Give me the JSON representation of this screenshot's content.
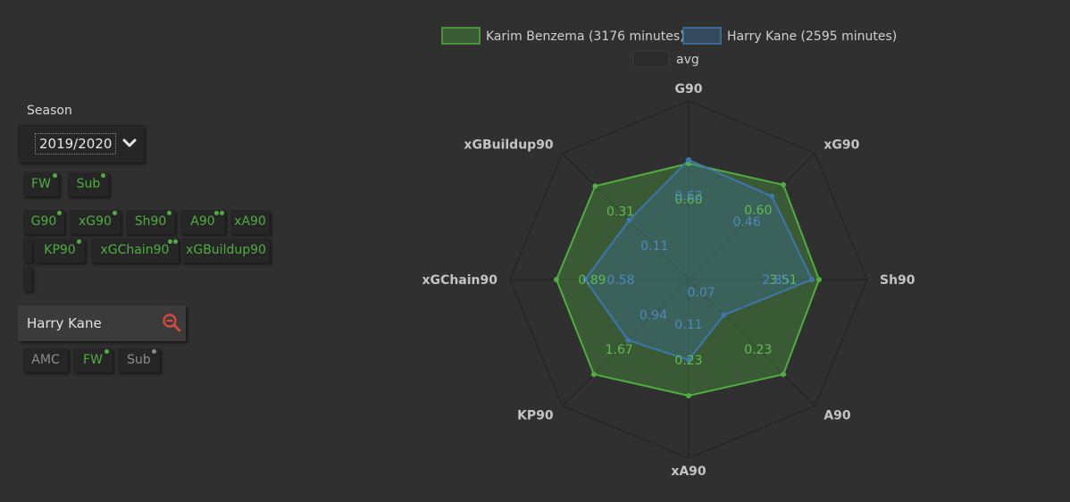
{
  "sidebar": {
    "season_label": "Season",
    "season_value": "2019/2020",
    "position_filters": [
      {
        "label": "FW",
        "active": true
      },
      {
        "label": "Sub",
        "active": true
      }
    ],
    "metric_filters": [
      {
        "label": "G90",
        "dots": 1
      },
      {
        "label": "xG90",
        "dots": 1
      },
      {
        "label": "Sh90",
        "dots": 1
      },
      {
        "label": "A90",
        "dots": 2
      },
      {
        "label": "xA90",
        "dots": 0
      },
      {
        "label": "",
        "dots": 0
      },
      {
        "label": "KP90",
        "dots": 1
      },
      {
        "label": "xGChain90",
        "dots": 2
      },
      {
        "label": "xGBuildup90",
        "dots": 0
      },
      {
        "label": "",
        "dots": 0
      }
    ],
    "player": {
      "name": "Harry Kane",
      "icon": "zoom-out-icon",
      "positions": [
        {
          "label": "AMC",
          "active": false
        },
        {
          "label": "FW",
          "active": true
        },
        {
          "label": "Sub",
          "active": false
        }
      ]
    }
  },
  "chart_data": {
    "type": "radar",
    "axes": [
      "G90",
      "xG90",
      "Sh90",
      "A90",
      "xA90",
      "KP90",
      "xGChain90",
      "xGBuildup90"
    ],
    "series": [
      {
        "name": "Karim Benzema (3176 minutes)",
        "color": "#4fae3f",
        "fraction": [
          0.65,
          0.75,
          0.73,
          0.75,
          0.65,
          0.75,
          0.74,
          0.74
        ],
        "labels": [
          "0.60",
          "0.60",
          "3.51",
          "0.23",
          "0.23",
          "1.67",
          "0.89",
          "0.31"
        ]
      },
      {
        "name": "Harry Kane (2595 minutes)",
        "color": "#3d77ae",
        "fraction": [
          0.67,
          0.66,
          0.69,
          0.28,
          0.45,
          0.48,
          0.58,
          0.47
        ],
        "labels": [
          "0.62",
          "0.46",
          "2.85",
          "0.07",
          "0.11",
          "0.94",
          "0.58",
          "0.11"
        ]
      }
    ],
    "avg_legend": "avg",
    "grid": true,
    "legend_position": "top"
  }
}
